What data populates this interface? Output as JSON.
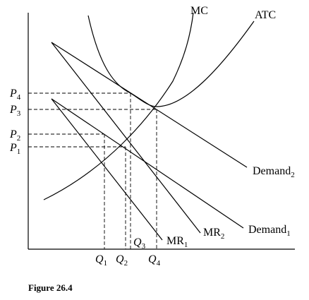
{
  "chart_data": {
    "type": "line",
    "caption": "Figure 26.4",
    "grid": false,
    "curves": {
      "mc": {
        "label": "MC"
      },
      "atc": {
        "label": "ATC"
      },
      "demand1": {
        "label": "Demand",
        "subscript": "1"
      },
      "demand2": {
        "label": "Demand",
        "subscript": "2"
      },
      "mr1": {
        "label": "MR",
        "subscript": "1"
      },
      "mr2": {
        "label": "MR",
        "subscript": "2"
      }
    },
    "price_ticks": [
      {
        "id": "p4",
        "label": "P",
        "subscript": "4"
      },
      {
        "id": "p3",
        "label": "P",
        "subscript": "3"
      },
      {
        "id": "p2",
        "label": "P",
        "subscript": "2"
      },
      {
        "id": "p1",
        "label": "P",
        "subscript": "1"
      }
    ],
    "quantity_ticks": [
      {
        "id": "q1",
        "label": "Q",
        "subscript": "1"
      },
      {
        "id": "q2",
        "label": "Q",
        "subscript": "2"
      },
      {
        "id": "q3",
        "label": "Q",
        "subscript": "3"
      },
      {
        "id": "q4",
        "label": "Q",
        "subscript": "4"
      }
    ]
  }
}
